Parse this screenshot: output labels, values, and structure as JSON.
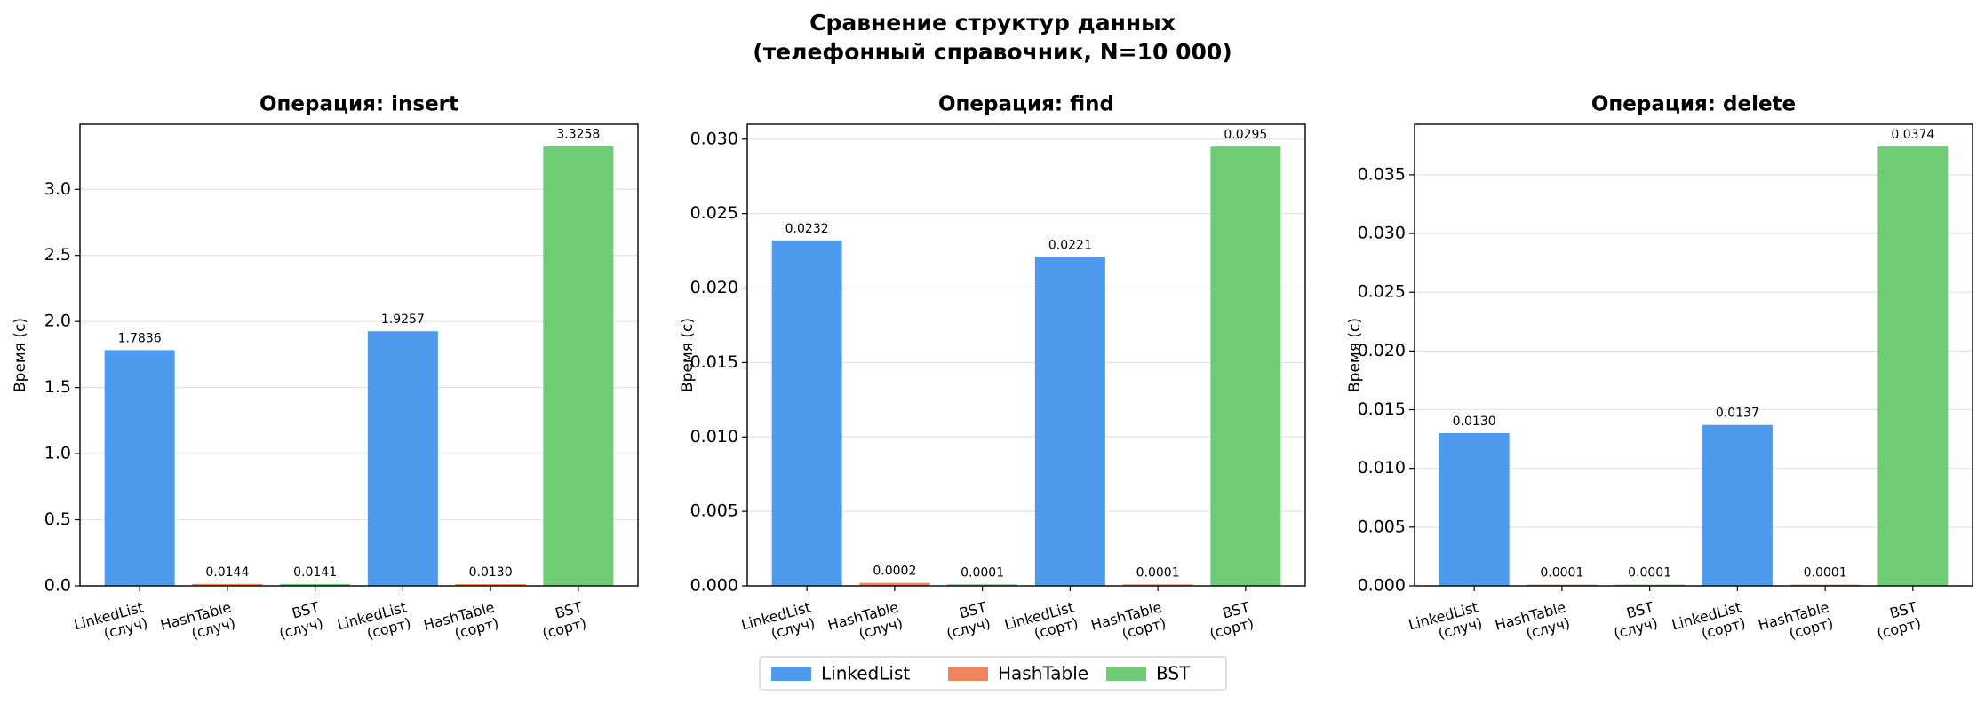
{
  "title": "Сравнение структур данных",
  "subtitle": "(телефонный справочник, N=10 000)",
  "legend": "bottom",
  "chart_data": [
    {
      "type": "bar",
      "title": "Операция: insert",
      "ylabel": "Время (с)",
      "categories": [
        "LinkedList\n(случ)",
        "HashTable\n(случ)",
        "BST\n(случ)",
        "LinkedList\n(сорт)",
        "HashTable\n(сорт)",
        "BST\n(сорт)"
      ],
      "series": [
        {
          "name": "LinkedList",
          "color": "#4e9aee",
          "values": [
            1.7836,
            null,
            null,
            1.9257,
            null,
            null
          ],
          "value_labels": [
            "1.7836",
            null,
            null,
            "1.9257",
            null,
            null
          ]
        },
        {
          "name": "HashTable",
          "color": "#f0845c",
          "values": [
            null,
            0.0144,
            null,
            null,
            0.013,
            null
          ],
          "value_labels": [
            null,
            "0.0144",
            null,
            null,
            "0.0130",
            null
          ]
        },
        {
          "name": "BST",
          "color": "#6dcc74",
          "values": [
            null,
            null,
            0.0141,
            null,
            null,
            3.3258
          ],
          "value_labels": [
            null,
            null,
            "0.0141",
            null,
            null,
            "3.3258"
          ]
        }
      ],
      "ylim": [
        0,
        3.492
      ],
      "yticks": [
        {
          "value": 0,
          "label": "0.0"
        },
        0.5,
        {
          "value": 1,
          "label": "1.0"
        },
        1.5,
        {
          "value": 2,
          "label": "2.0"
        },
        2.5,
        {
          "value": 3,
          "label": "3.0"
        }
      ],
      "grid": true
    },
    {
      "type": "bar",
      "title": "Операция: find",
      "ylabel": "Время (с)",
      "categories": [
        "LinkedList\n(случ)",
        "HashTable\n(случ)",
        "BST\n(случ)",
        "LinkedList\n(сорт)",
        "HashTable\n(сорт)",
        "BST\n(сорт)"
      ],
      "series": [
        {
          "name": "LinkedList",
          "color": "#4e9aee",
          "values": [
            0.0232,
            null,
            null,
            0.0221,
            null,
            null
          ],
          "value_labels": [
            "0.0232",
            null,
            null,
            "0.0221",
            null,
            null
          ]
        },
        {
          "name": "HashTable",
          "color": "#f0845c",
          "values": [
            null,
            0.0002,
            null,
            null,
            0.0001,
            null
          ],
          "value_labels": [
            null,
            "0.0002",
            null,
            null,
            "0.0001",
            null
          ]
        },
        {
          "name": "BST",
          "color": "#6dcc74",
          "values": [
            null,
            null,
            0.0001,
            null,
            null,
            0.0295
          ],
          "value_labels": [
            null,
            null,
            "0.0001",
            null,
            null,
            "0.0295"
          ]
        }
      ],
      "ylim": [
        0,
        0.031
      ],
      "yticks": [
        {
          "value": 0,
          "label": "0.000"
        },
        {
          "value": 0.005,
          "label": "0.005"
        },
        {
          "value": 0.01,
          "label": "0.010"
        },
        {
          "value": 0.015,
          "label": "0.015"
        },
        {
          "value": 0.02,
          "label": "0.020"
        },
        {
          "value": 0.025,
          "label": "0.025"
        },
        {
          "value": 0.03,
          "label": "0.030"
        }
      ],
      "grid": true
    },
    {
      "type": "bar",
      "title": "Операция: delete",
      "ylabel": "Время (с)",
      "categories": [
        "LinkedList\n(случ)",
        "HashTable\n(случ)",
        "BST\n(случ)",
        "LinkedList\n(сорт)",
        "HashTable\n(сорт)",
        "BST\n(сорт)"
      ],
      "series": [
        {
          "name": "LinkedList",
          "color": "#4e9aee",
          "values": [
            0.013,
            null,
            null,
            0.0137,
            null,
            null
          ],
          "value_labels": [
            "0.0130",
            null,
            null,
            "0.0137",
            null,
            null
          ]
        },
        {
          "name": "HashTable",
          "color": "#f0845c",
          "values": [
            null,
            0.0001,
            null,
            null,
            0.0001,
            null
          ],
          "value_labels": [
            null,
            "0.0001",
            null,
            null,
            "0.0001",
            null
          ]
        },
        {
          "name": "BST",
          "color": "#6dcc74",
          "values": [
            null,
            null,
            0.0001,
            null,
            null,
            0.0374
          ],
          "value_labels": [
            null,
            null,
            "0.0001",
            null,
            null,
            "0.0374"
          ]
        }
      ],
      "ylim": [
        0,
        0.0393
      ],
      "yticks": [
        {
          "value": 0,
          "label": "0.000"
        },
        {
          "value": 0.005,
          "label": "0.005"
        },
        {
          "value": 0.01,
          "label": "0.010"
        },
        {
          "value": 0.015,
          "label": "0.015"
        },
        {
          "value": 0.02,
          "label": "0.020"
        },
        {
          "value": 0.025,
          "label": "0.025"
        },
        {
          "value": 0.03,
          "label": "0.030"
        },
        {
          "value": 0.035,
          "label": "0.035"
        }
      ],
      "grid": true
    }
  ]
}
